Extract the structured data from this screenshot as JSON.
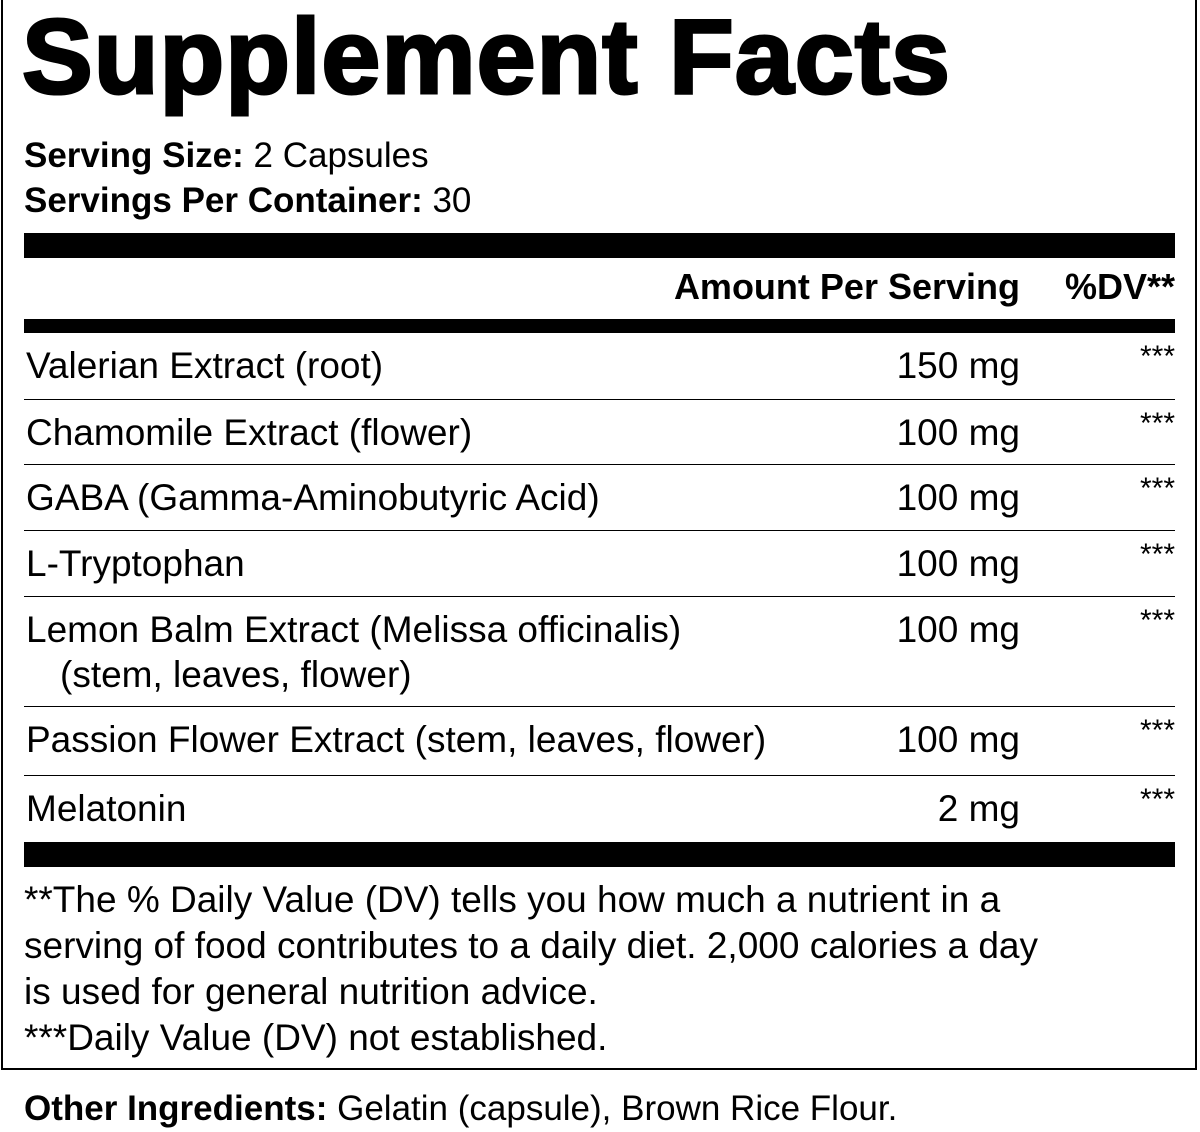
{
  "title": "Supplement Facts",
  "serving_size": {
    "label": "Serving Size:",
    "value": "2 Capsules"
  },
  "servings_per_container": {
    "label": "Servings Per Container:",
    "value": "30"
  },
  "header": {
    "amount": "Amount Per Serving",
    "dv": "%DV**"
  },
  "ingredients": [
    {
      "name": "Valerian Extract (root)",
      "sub": "",
      "amount": "150 mg",
      "dv": "***"
    },
    {
      "name": "Chamomile Extract (flower)",
      "sub": "",
      "amount": "100 mg",
      "dv": "***"
    },
    {
      "name": "GABA (Gamma-Aminobutyric Acid)",
      "sub": "",
      "amount": "100 mg",
      "dv": "***"
    },
    {
      "name": "L-Tryptophan",
      "sub": "",
      "amount": "100 mg",
      "dv": "***"
    },
    {
      "name": "Lemon Balm Extract (Melissa officinalis)",
      "sub": "(stem, leaves, flower)",
      "amount": "100 mg",
      "dv": "***"
    },
    {
      "name": "Passion Flower Extract (stem, leaves, flower)",
      "sub": "",
      "amount": "100 mg",
      "dv": "***"
    },
    {
      "name": "Melatonin",
      "sub": "",
      "amount": "2 mg",
      "dv": "***"
    }
  ],
  "footnotes": [
    "**The % Daily Value (DV) tells you how much a nutrient in a",
    "serving of food contributes to a daily diet. 2,000 calories a day",
    "is used for general nutrition advice.",
    "***Daily Value (DV) not established."
  ],
  "other_ingredients": {
    "label": "Other Ingredients:",
    "value": "Gelatin (capsule), Brown Rice Flour."
  }
}
